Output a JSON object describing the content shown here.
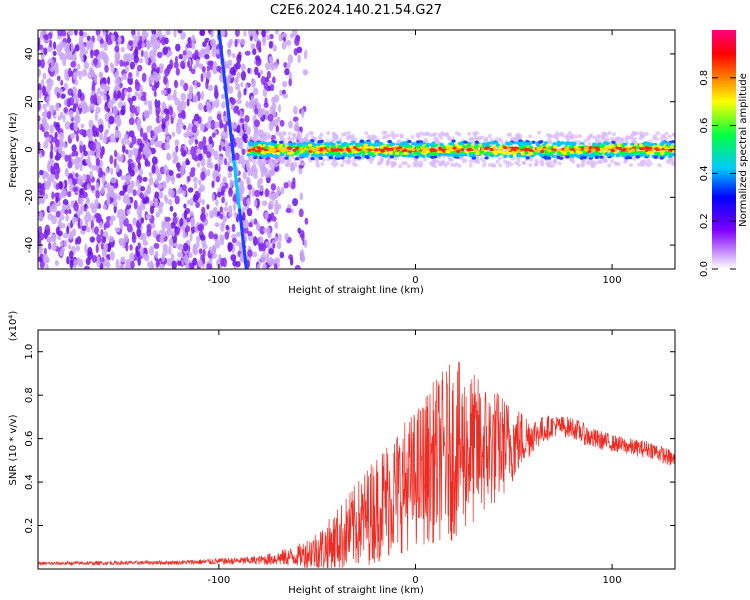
{
  "title": "C2E6.2024.140.21.54.G27",
  "chart_data": [
    {
      "type": "heatmap",
      "xlabel": "Height of straight line (km)",
      "ylabel": "Frequency (Hz)",
      "xlim": [
        -192,
        132
      ],
      "ylim": [
        -50,
        50
      ],
      "xticks": [
        -100,
        0,
        100
      ],
      "yticks": [
        -40,
        -20,
        0,
        20,
        40
      ],
      "colorbar": {
        "label": "Normalized spectral amplitude",
        "range": [
          0,
          1
        ],
        "ticks": [
          "0.0",
          "0.2",
          "0.4",
          "0.6",
          "0.8"
        ],
        "colors": [
          "#ffffff",
          "#8000ff",
          "#0000ff",
          "#00c8ff",
          "#00ff40",
          "#ffff00",
          "#ff8000",
          "#ff0000",
          "#ff0080"
        ]
      },
      "signal_band": {
        "x_start": -85,
        "x_end": 132,
        "center_freq_hz": 0,
        "half_width_hz": 4
      }
    },
    {
      "type": "line",
      "xlabel": "Height of straight line (km)",
      "ylabel": "SNR (10 * v/v)",
      "y_multiplier": "(x10⁴)",
      "xlim": [
        -192,
        132
      ],
      "ylim": [
        0,
        1.1
      ],
      "xticks": [
        -100,
        0,
        100
      ],
      "yticks": [
        "0.2",
        "0.4",
        "0.6",
        "0.8",
        "1.0"
      ],
      "color": "#ee2a22",
      "envelope": {
        "x": [
          -192,
          -120,
          -80,
          -60,
          -45,
          -30,
          -15,
          0,
          10,
          20,
          30,
          40,
          50,
          60,
          70,
          80,
          90,
          100,
          110,
          120,
          132
        ],
        "y": [
          0.025,
          0.03,
          0.04,
          0.06,
          0.1,
          0.2,
          0.32,
          0.42,
          0.5,
          0.55,
          0.55,
          0.56,
          0.58,
          0.62,
          0.66,
          0.65,
          0.6,
          0.58,
          0.56,
          0.55,
          0.5
        ],
        "noise": [
          0.008,
          0.01,
          0.02,
          0.05,
          0.12,
          0.2,
          0.28,
          0.32,
          0.38,
          0.42,
          0.35,
          0.28,
          0.18,
          0.08,
          0.05,
          0.05,
          0.05,
          0.04,
          0.04,
          0.04,
          0.04
        ]
      }
    }
  ]
}
